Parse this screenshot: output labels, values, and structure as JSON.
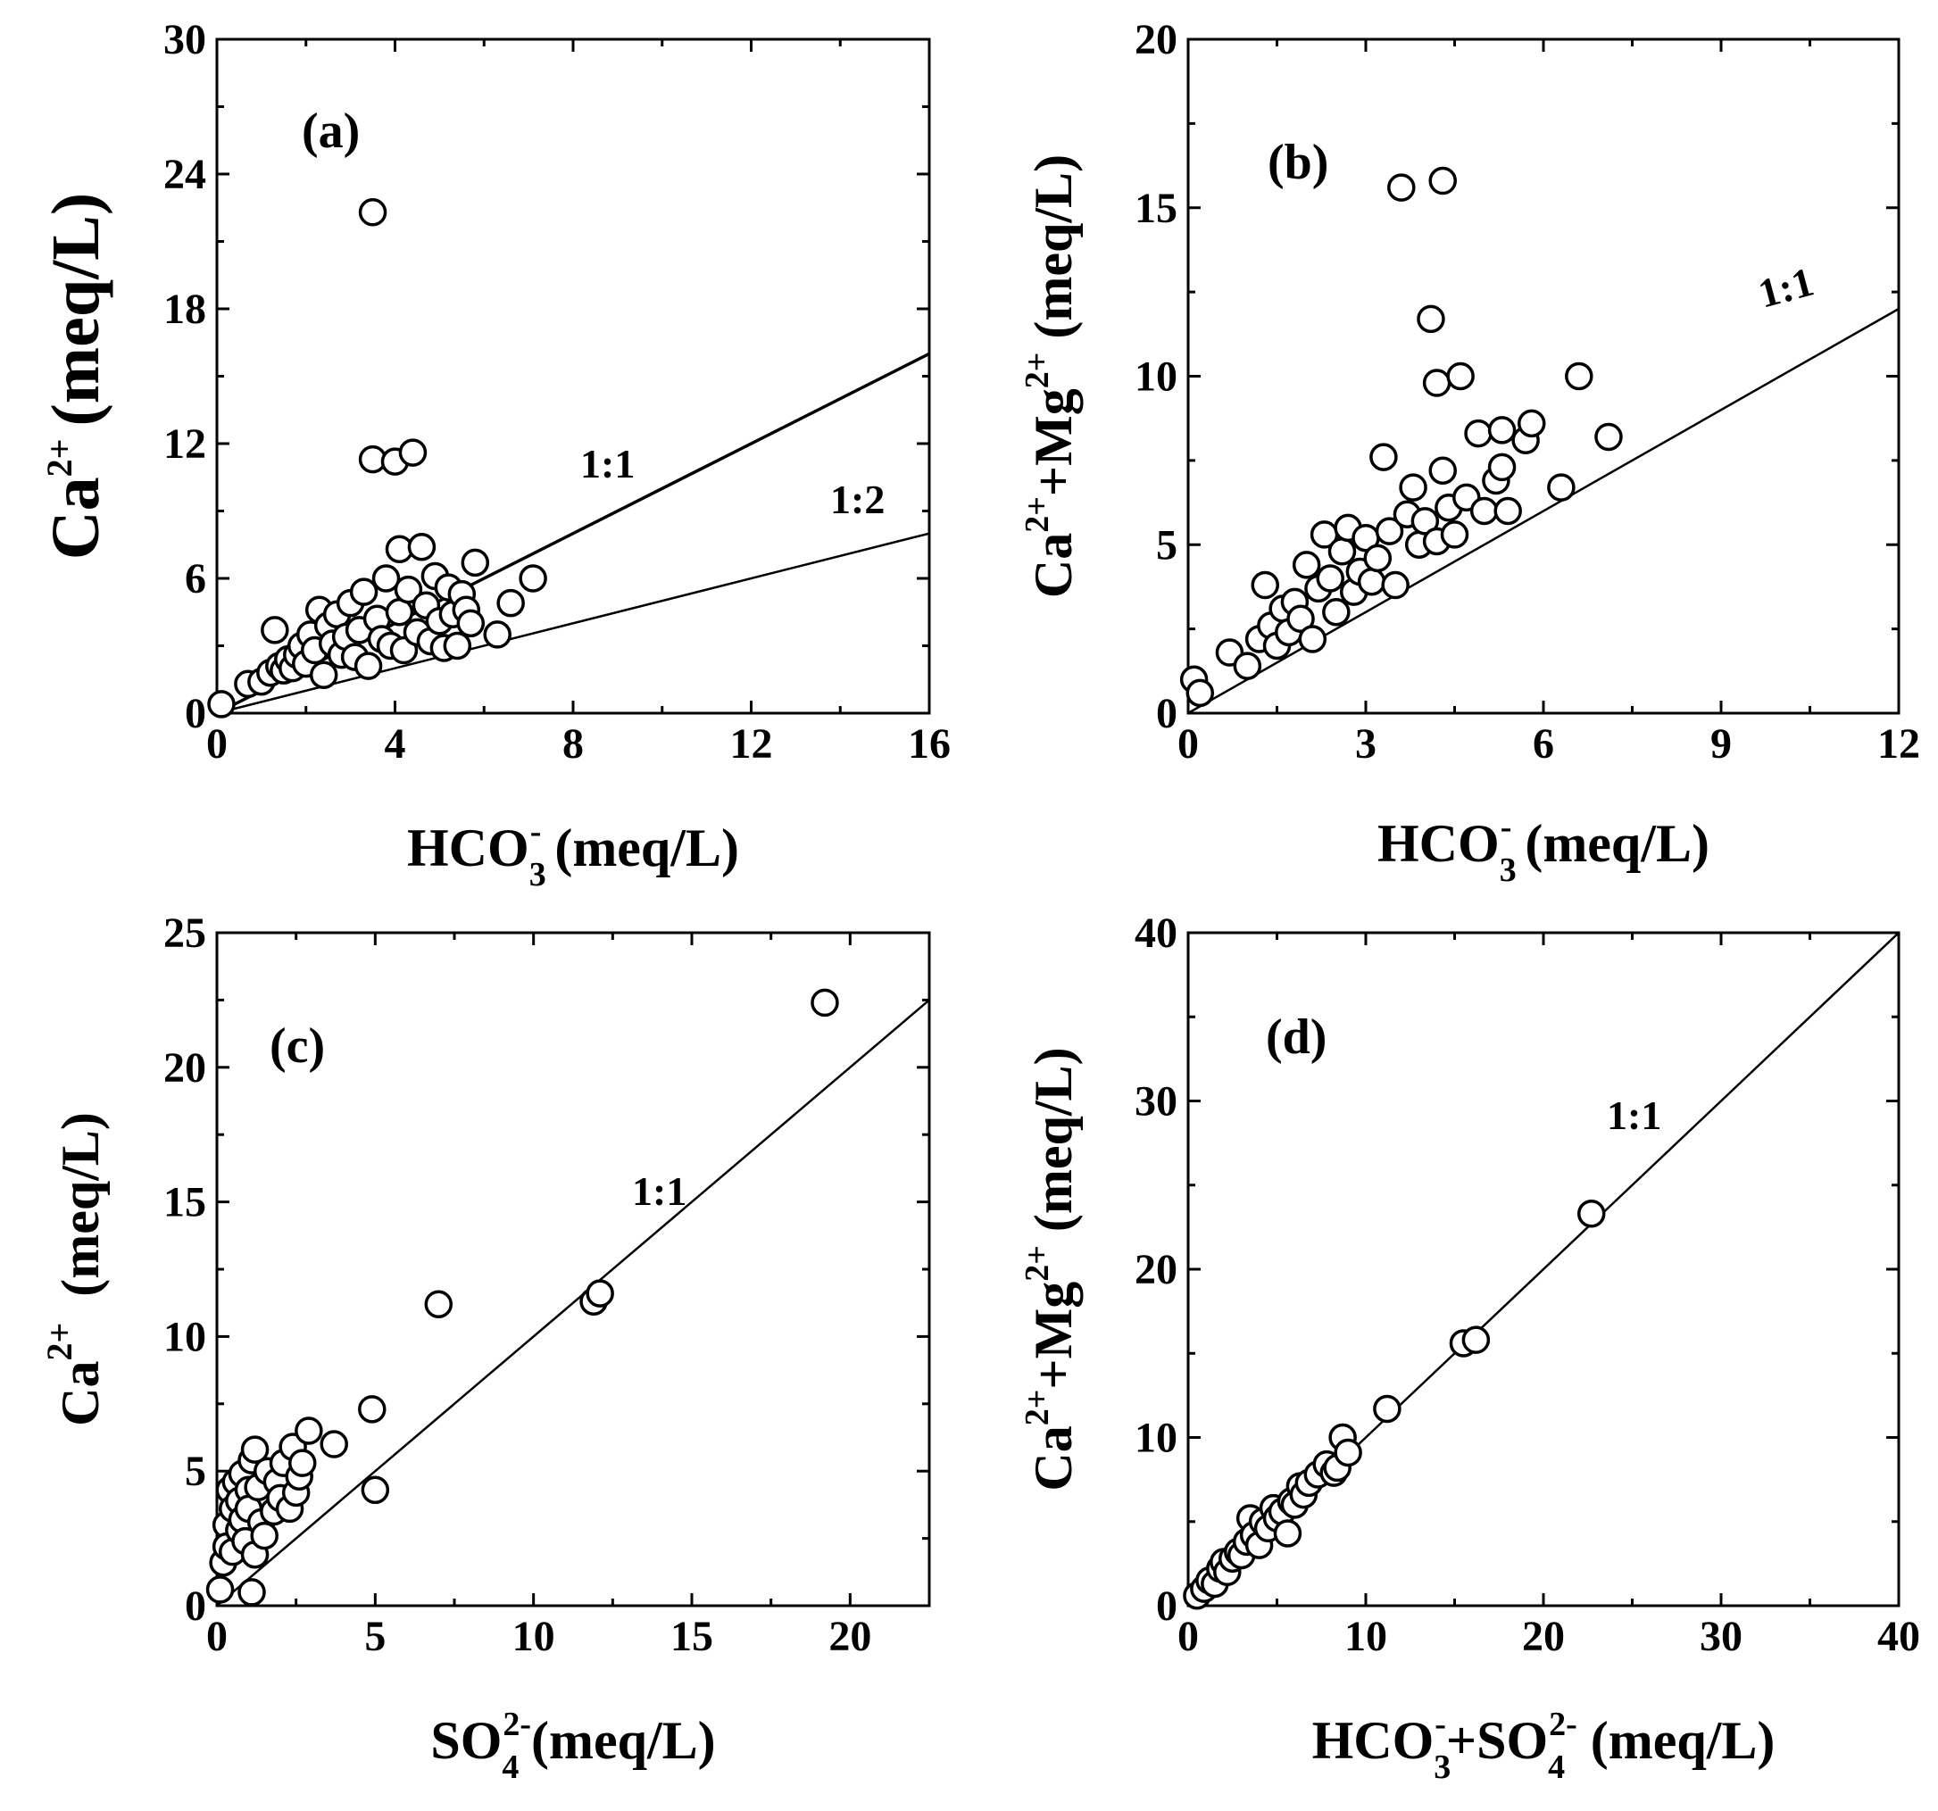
{
  "chart_data": [
    {
      "id": "a",
      "type": "scatter",
      "panel_label": "(a)",
      "xlabel": {
        "main": "HCO",
        "sub": "3",
        "sup": "-",
        "unit": " (meq/L)"
      },
      "ylabel": {
        "main": "Ca",
        "sup": "2+",
        "unit": "(meq/L)"
      },
      "xlim": [
        0,
        16
      ],
      "ylim": [
        0,
        30
      ],
      "xticks": [
        0,
        4,
        8,
        12,
        16
      ],
      "yticks": [
        0,
        6,
        12,
        18,
        24,
        30
      ],
      "xticklabels": [
        "0",
        "4",
        "8",
        "12",
        "16"
      ],
      "yticklabels": [
        "0",
        "6",
        "12",
        "18",
        "24",
        "30"
      ],
      "ref_lines": [
        {
          "label": "1:1",
          "slope": 1
        },
        {
          "label": "1:2",
          "slope": 0.5
        }
      ],
      "points": [
        [
          0.1,
          0.4
        ],
        [
          0.7,
          1.3
        ],
        [
          1.0,
          1.4
        ],
        [
          1.2,
          1.8
        ],
        [
          1.3,
          3.7
        ],
        [
          1.4,
          2.1
        ],
        [
          1.5,
          1.9
        ],
        [
          1.6,
          2.4
        ],
        [
          1.7,
          2.0
        ],
        [
          1.8,
          2.6
        ],
        [
          1.9,
          3.0
        ],
        [
          2.0,
          2.2
        ],
        [
          2.1,
          3.5
        ],
        [
          2.2,
          2.8
        ],
        [
          2.3,
          4.6
        ],
        [
          2.4,
          1.7
        ],
        [
          2.5,
          3.9
        ],
        [
          2.6,
          3.1
        ],
        [
          2.7,
          4.4
        ],
        [
          2.8,
          2.6
        ],
        [
          2.9,
          3.4
        ],
        [
          3.0,
          4.9
        ],
        [
          3.1,
          2.5
        ],
        [
          3.2,
          3.7
        ],
        [
          3.3,
          5.4
        ],
        [
          3.4,
          2.1
        ],
        [
          3.5,
          11.3
        ],
        [
          3.5,
          22.3
        ],
        [
          3.6,
          4.2
        ],
        [
          3.7,
          3.3
        ],
        [
          3.8,
          6.0
        ],
        [
          3.9,
          3.0
        ],
        [
          4.0,
          11.2
        ],
        [
          4.1,
          4.5
        ],
        [
          4.1,
          7.3
        ],
        [
          4.2,
          2.8
        ],
        [
          4.3,
          5.5
        ],
        [
          4.4,
          11.6
        ],
        [
          4.5,
          3.6
        ],
        [
          4.6,
          7.4
        ],
        [
          4.7,
          4.8
        ],
        [
          4.8,
          3.2
        ],
        [
          4.9,
          6.1
        ],
        [
          5.0,
          4.1
        ],
        [
          5.1,
          2.9
        ],
        [
          5.2,
          5.6
        ],
        [
          5.3,
          4.4
        ],
        [
          5.4,
          3.0
        ],
        [
          5.5,
          5.3
        ],
        [
          5.6,
          4.6
        ],
        [
          5.7,
          4.0
        ],
        [
          5.8,
          6.7
        ],
        [
          6.3,
          3.5
        ],
        [
          6.6,
          4.9
        ],
        [
          7.1,
          6.0
        ]
      ]
    },
    {
      "id": "b",
      "type": "scatter",
      "panel_label": "(b)",
      "xlabel": {
        "main": "HCO",
        "sub": "3",
        "sup": "-",
        "unit": " (meq/L)"
      },
      "ylabel": {
        "parts": [
          "Ca",
          "2+",
          "+Mg",
          "2+"
        ],
        "unit": " (meq/L)"
      },
      "xlim": [
        0,
        12
      ],
      "ylim": [
        0,
        20
      ],
      "xticks": [
        0,
        3,
        6,
        9,
        12
      ],
      "yticks": [
        0,
        5,
        10,
        15,
        20
      ],
      "xticklabels": [
        "0",
        "3",
        "6",
        "9",
        "12"
      ],
      "yticklabels": [
        "0",
        "5",
        "10",
        "15",
        "20"
      ],
      "ref_lines": [
        {
          "label": "1:1",
          "slope": 1
        }
      ],
      "points": [
        [
          0.1,
          1.0
        ],
        [
          0.2,
          0.6
        ],
        [
          0.7,
          1.8
        ],
        [
          1.0,
          1.4
        ],
        [
          1.2,
          2.2
        ],
        [
          1.3,
          3.8
        ],
        [
          1.4,
          2.6
        ],
        [
          1.5,
          2.0
        ],
        [
          1.6,
          3.1
        ],
        [
          1.7,
          2.4
        ],
        [
          1.8,
          3.3
        ],
        [
          1.9,
          2.8
        ],
        [
          2.0,
          4.4
        ],
        [
          2.1,
          2.2
        ],
        [
          2.2,
          3.7
        ],
        [
          2.3,
          5.3
        ],
        [
          2.4,
          4.0
        ],
        [
          2.5,
          3.0
        ],
        [
          2.6,
          4.8
        ],
        [
          2.7,
          5.5
        ],
        [
          2.8,
          3.6
        ],
        [
          2.9,
          4.2
        ],
        [
          3.0,
          5.2
        ],
        [
          3.1,
          3.9
        ],
        [
          3.2,
          4.6
        ],
        [
          3.3,
          7.6
        ],
        [
          3.4,
          5.4
        ],
        [
          3.5,
          3.8
        ],
        [
          3.6,
          15.6
        ],
        [
          3.7,
          5.9
        ],
        [
          3.8,
          6.7
        ],
        [
          3.9,
          5.0
        ],
        [
          4.0,
          5.7
        ],
        [
          4.1,
          11.7
        ],
        [
          4.2,
          9.8
        ],
        [
          4.2,
          5.1
        ],
        [
          4.3,
          7.2
        ],
        [
          4.3,
          15.8
        ],
        [
          4.4,
          6.1
        ],
        [
          4.5,
          5.3
        ],
        [
          4.6,
          10.0
        ],
        [
          4.7,
          6.4
        ],
        [
          4.9,
          8.3
        ],
        [
          5.0,
          6.0
        ],
        [
          5.2,
          6.9
        ],
        [
          5.3,
          8.4
        ],
        [
          5.3,
          7.3
        ],
        [
          5.4,
          6.0
        ],
        [
          5.7,
          8.1
        ],
        [
          5.8,
          8.6
        ],
        [
          6.3,
          6.7
        ],
        [
          6.6,
          10.0
        ],
        [
          7.1,
          8.2
        ]
      ]
    },
    {
      "id": "c",
      "type": "scatter",
      "panel_label": "(c)",
      "xlabel": {
        "main": "SO",
        "sub": "4",
        "sup": "2-",
        "unit": "(meq/L)"
      },
      "ylabel": {
        "main": "Ca",
        "sup": "2+",
        "unit": " (meq/L)"
      },
      "xlim": [
        0,
        22.5
      ],
      "ylim": [
        0,
        25
      ],
      "xticks": [
        0,
        5,
        10,
        15,
        20
      ],
      "yticks": [
        0,
        5,
        10,
        15,
        20,
        25
      ],
      "xticklabels": [
        "0",
        "5",
        "10",
        "15",
        "20"
      ],
      "yticklabels": [
        "0",
        "5",
        "10",
        "15",
        "20",
        "25"
      ],
      "ref_lines": [
        {
          "label": "1:1",
          "slope": 1
        }
      ],
      "points": [
        [
          0.1,
          0.6
        ],
        [
          0.2,
          1.6
        ],
        [
          0.3,
          3.0
        ],
        [
          0.3,
          2.2
        ],
        [
          0.4,
          4.3
        ],
        [
          0.5,
          3.6
        ],
        [
          0.5,
          2.0
        ],
        [
          0.6,
          4.6
        ],
        [
          0.7,
          2.8
        ],
        [
          0.7,
          3.9
        ],
        [
          0.8,
          3.2
        ],
        [
          0.8,
          4.9
        ],
        [
          0.9,
          2.4
        ],
        [
          1.0,
          4.3
        ],
        [
          1.0,
          3.6
        ],
        [
          1.1,
          5.4
        ],
        [
          1.1,
          0.5
        ],
        [
          1.2,
          1.9
        ],
        [
          1.2,
          5.8
        ],
        [
          1.3,
          4.4
        ],
        [
          1.4,
          3.1
        ],
        [
          1.5,
          2.6
        ],
        [
          1.6,
          5.0
        ],
        [
          1.8,
          3.5
        ],
        [
          1.9,
          4.6
        ],
        [
          2.0,
          4.0
        ],
        [
          2.1,
          5.3
        ],
        [
          2.3,
          3.6
        ],
        [
          2.4,
          5.9
        ],
        [
          2.5,
          4.2
        ],
        [
          2.6,
          4.8
        ],
        [
          2.7,
          5.3
        ],
        [
          2.9,
          6.5
        ],
        [
          3.7,
          6.0
        ],
        [
          4.9,
          7.3
        ],
        [
          5.0,
          4.3
        ],
        [
          7.0,
          11.2
        ],
        [
          11.9,
          11.3
        ],
        [
          12.1,
          11.6
        ],
        [
          19.2,
          22.4
        ]
      ]
    },
    {
      "id": "d",
      "type": "scatter",
      "panel_label": "(d)",
      "xlabel": {
        "parts": [
          "HCO",
          "3",
          "-",
          "+SO",
          "4",
          "2-"
        ],
        "unit": " (meq/L)"
      },
      "ylabel": {
        "parts": [
          "Ca",
          "2+",
          "+Mg",
          "2+"
        ],
        "unit": " (meq/L)"
      },
      "xlim": [
        0,
        40
      ],
      "ylim": [
        0,
        40
      ],
      "xticks": [
        0,
        10,
        20,
        30,
        40
      ],
      "yticks": [
        0,
        10,
        20,
        30,
        40
      ],
      "xticklabels": [
        "0",
        "10",
        "20",
        "30",
        "40"
      ],
      "yticklabels": [
        "0",
        "10",
        "20",
        "30",
        "40"
      ],
      "ref_lines": [
        {
          "label": "1:1",
          "slope": 1
        }
      ],
      "points": [
        [
          0.5,
          0.6
        ],
        [
          0.9,
          1.0
        ],
        [
          1.2,
          1.5
        ],
        [
          1.5,
          1.3
        ],
        [
          1.8,
          2.2
        ],
        [
          2.0,
          2.6
        ],
        [
          2.2,
          2.0
        ],
        [
          2.5,
          2.8
        ],
        [
          2.8,
          3.2
        ],
        [
          3.0,
          3.0
        ],
        [
          3.3,
          3.8
        ],
        [
          3.5,
          5.2
        ],
        [
          3.7,
          4.2
        ],
        [
          4.0,
          3.6
        ],
        [
          4.2,
          5.0
        ],
        [
          4.5,
          4.6
        ],
        [
          4.8,
          5.8
        ],
        [
          5.0,
          5.2
        ],
        [
          5.3,
          5.6
        ],
        [
          5.6,
          4.3
        ],
        [
          5.8,
          6.2
        ],
        [
          6.0,
          6.0
        ],
        [
          6.3,
          7.1
        ],
        [
          6.5,
          6.6
        ],
        [
          6.8,
          7.3
        ],
        [
          7.3,
          7.8
        ],
        [
          7.8,
          8.4
        ],
        [
          8.2,
          7.9
        ],
        [
          8.4,
          8.2
        ],
        [
          8.7,
          10.0
        ],
        [
          9.0,
          9.1
        ],
        [
          11.2,
          11.7
        ],
        [
          15.5,
          15.6
        ],
        [
          16.2,
          15.8
        ],
        [
          22.7,
          23.3
        ]
      ]
    }
  ]
}
